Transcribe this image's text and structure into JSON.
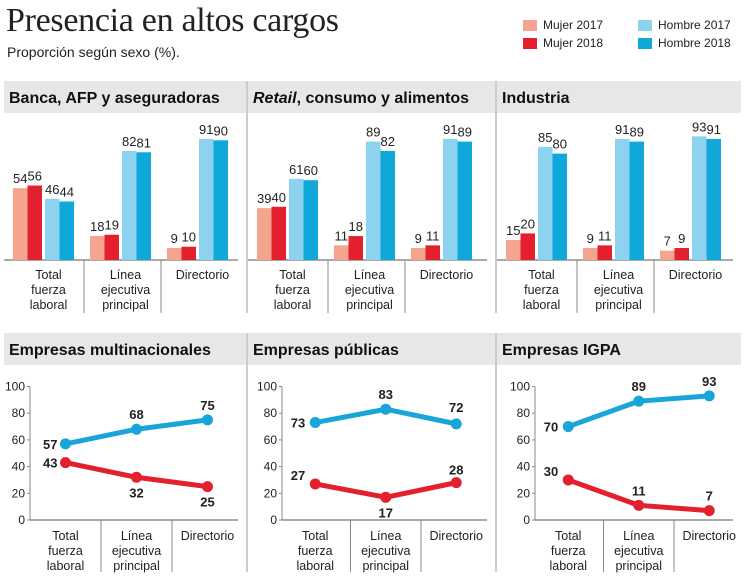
{
  "title": "Presencia en altos cargos",
  "subtitle": "Proporción según sexo (%).",
  "colors": {
    "mujer_2017": "#f4a48f",
    "mujer_2018": "#e2202e",
    "hombre_2017": "#8dd2ee",
    "hombre_2018": "#10a8d8",
    "header_bg": "#e7e7e7",
    "line_mujer": "#e2202e",
    "line_hombre": "#19a5d9"
  },
  "legend": [
    {
      "key": "mujer_2017",
      "label": "Mujer 2017"
    },
    {
      "key": "mujer_2018",
      "label": "Mujer 2018"
    },
    {
      "key": "hombre_2017",
      "label": "Hombre 2017"
    },
    {
      "key": "hombre_2018",
      "label": "Hombre 2018"
    }
  ],
  "chart_data": [
    {
      "type": "bar",
      "title": "Banca, AFP y aseguradoras",
      "categories": [
        [
          "Total",
          "fuerza",
          "laboral"
        ],
        [
          "Línea",
          "ejecutiva",
          "principal"
        ],
        [
          "Directorio"
        ]
      ],
      "series": [
        {
          "name": "Mujer 2017",
          "values": [
            54,
            18,
            9
          ]
        },
        {
          "name": "Mujer 2018",
          "values": [
            56,
            19,
            10
          ]
        },
        {
          "name": "Hombre 2017",
          "values": [
            46,
            82,
            91
          ]
        },
        {
          "name": "Hombre 2018",
          "values": [
            44,
            81,
            90
          ]
        }
      ],
      "ylim": [
        0,
        100
      ]
    },
    {
      "type": "bar",
      "title": "consumo y alimentos",
      "title_italic": "Retail",
      "title_sep": ",",
      "categories": [
        [
          "Total",
          "fuerza",
          "laboral"
        ],
        [
          "Línea",
          "ejecutiva",
          "principal"
        ],
        [
          "Directorio"
        ]
      ],
      "series": [
        {
          "name": "Mujer 2017",
          "values": [
            39,
            11,
            9
          ]
        },
        {
          "name": "Mujer 2018",
          "values": [
            40,
            18,
            11
          ]
        },
        {
          "name": "Hombre 2017",
          "values": [
            61,
            89,
            91
          ]
        },
        {
          "name": "Hombre 2018",
          "values": [
            60,
            82,
            89
          ]
        }
      ],
      "ylim": [
        0,
        100
      ]
    },
    {
      "type": "bar",
      "title": "Industria",
      "categories": [
        [
          "Total",
          "fuerza",
          "laboral"
        ],
        [
          "Línea",
          "ejecutiva",
          "principal"
        ],
        [
          "Directorio"
        ]
      ],
      "series": [
        {
          "name": "Mujer 2017",
          "values": [
            15,
            9,
            7
          ]
        },
        {
          "name": "Mujer 2018",
          "values": [
            20,
            11,
            9
          ]
        },
        {
          "name": "Hombre 2017",
          "values": [
            85,
            91,
            93
          ]
        },
        {
          "name": "Hombre 2018",
          "values": [
            80,
            89,
            91
          ]
        }
      ],
      "ylim": [
        0,
        100
      ]
    },
    {
      "type": "line",
      "title": "Empresas multinacionales",
      "categories": [
        [
          "Total",
          "fuerza",
          "laboral"
        ],
        [
          "Línea",
          "ejecutiva",
          "principal"
        ],
        [
          "Directorio"
        ]
      ],
      "series": [
        {
          "key": "hombre",
          "values": [
            57,
            68,
            75
          ]
        },
        {
          "key": "mujer",
          "values": [
            43,
            32,
            25
          ]
        }
      ],
      "ylim": [
        0,
        100
      ],
      "yticks": [
        "0",
        "20",
        "40",
        "60",
        "80",
        "100"
      ]
    },
    {
      "type": "line",
      "title": "Empresas públicas",
      "categories": [
        [
          "Total",
          "fuerza",
          "laboral"
        ],
        [
          "Línea",
          "ejecutiva",
          "principal"
        ],
        [
          "Directorio"
        ]
      ],
      "series": [
        {
          "key": "hombre",
          "values": [
            73,
            83,
            72
          ]
        },
        {
          "key": "mujer",
          "values": [
            27,
            17,
            28
          ]
        }
      ],
      "ylim": [
        0,
        100
      ],
      "yticks": [
        "0",
        "20",
        "40",
        "60",
        "80",
        "100"
      ]
    },
    {
      "type": "line",
      "title": "Empresas IGPA",
      "categories": [
        [
          "Total",
          "fuerza",
          "laboral"
        ],
        [
          "Línea",
          "ejecutiva",
          "principal"
        ],
        [
          "Directorio"
        ]
      ],
      "series": [
        {
          "key": "hombre",
          "values": [
            70,
            89,
            93
          ]
        },
        {
          "key": "mujer",
          "values": [
            30,
            11,
            7
          ]
        }
      ],
      "ylim": [
        0,
        100
      ],
      "yticks": [
        "0",
        "20",
        "40",
        "60",
        "80",
        "100"
      ]
    }
  ]
}
